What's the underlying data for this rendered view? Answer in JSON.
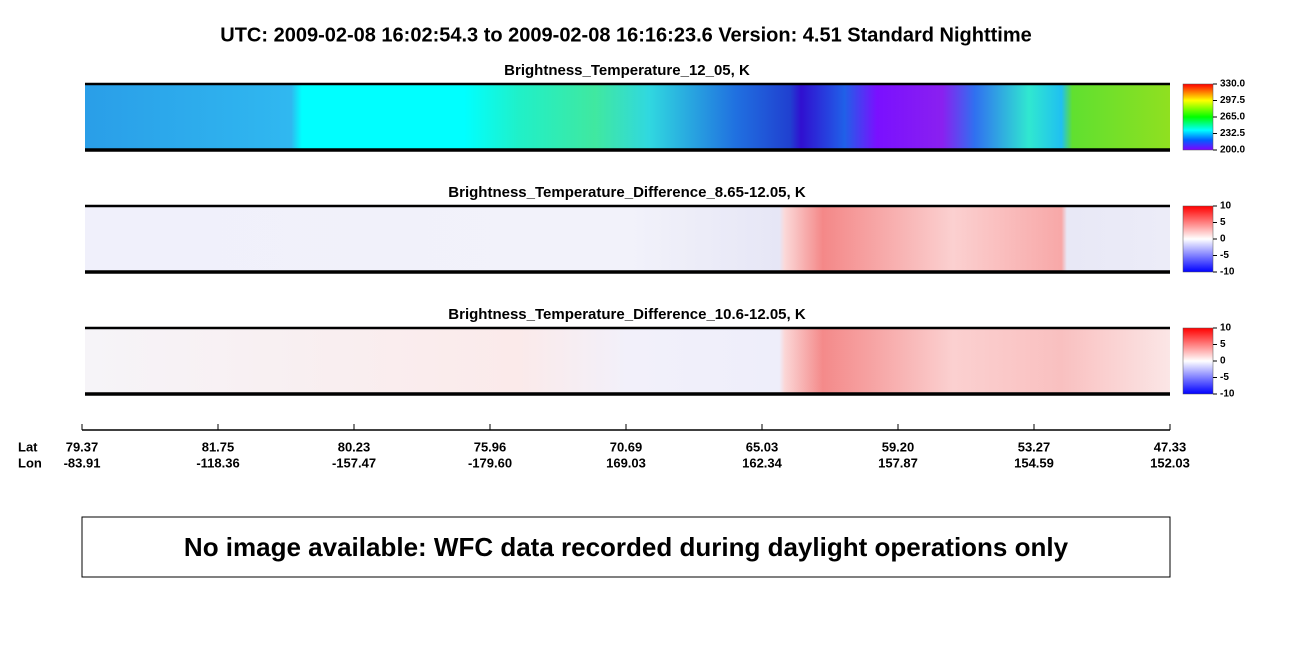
{
  "header": {
    "title": "UTC:  2009-02-08   16:02:54.3  to  2009-02-08   16:16:23.6    Version: 4.51  Standard Nighttime"
  },
  "panels": [
    {
      "title": "Brightness_Temperature_12_05, K",
      "colorbar": [
        "330.0",
        "297.5",
        "265.0",
        "232.5",
        "200.0"
      ]
    },
    {
      "title": "Brightness_Temperature_Difference_8.65-12.05, K",
      "colorbar": [
        "10",
        "5",
        "0",
        "-5",
        "-10"
      ]
    },
    {
      "title": "Brightness_Temperature_Difference_10.6-12.05, K",
      "colorbar": [
        "10",
        "5",
        "0",
        "-5",
        "-10"
      ]
    }
  ],
  "axis": {
    "lat_label": "Lat",
    "lon_label": "Lon",
    "lat": [
      "79.37",
      "81.75",
      "80.23",
      "75.96",
      "70.69",
      "65.03",
      "59.20",
      "53.27",
      "47.33"
    ],
    "lon": [
      "-83.91",
      "-118.36",
      "-157.47",
      "-179.60",
      "169.03",
      "162.34",
      "157.87",
      "154.59",
      "152.03"
    ]
  },
  "message": "No image available: WFC data recorded during daylight operations only"
}
